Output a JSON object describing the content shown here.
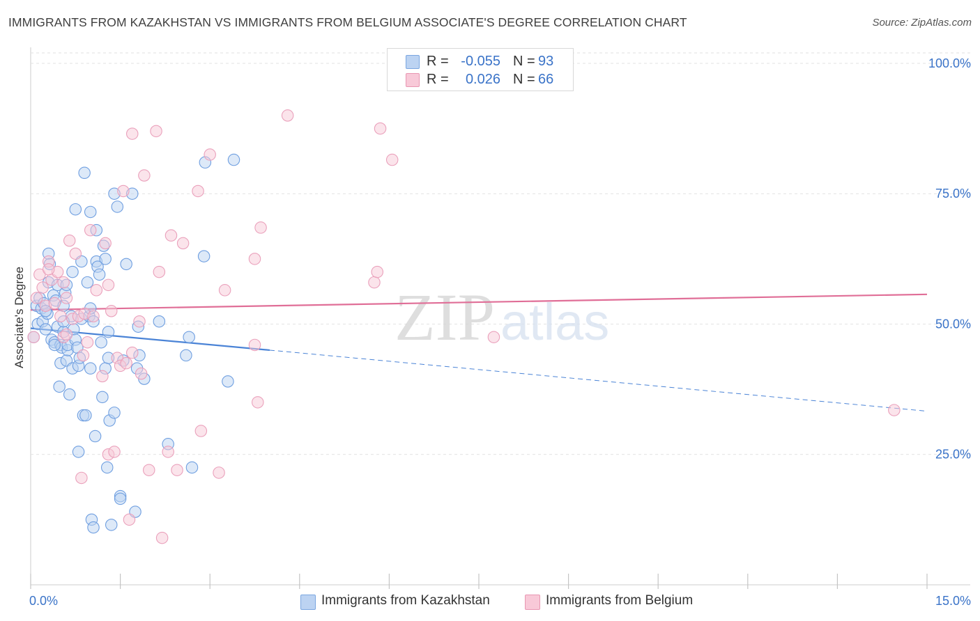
{
  "title": "IMMIGRANTS FROM KAZAKHSTAN VS IMMIGRANTS FROM BELGIUM ASSOCIATE'S DEGREE CORRELATION CHART",
  "source": "Source: ZipAtlas.com",
  "watermark": {
    "part1": "ZIP",
    "part2": "atlas"
  },
  "stats": [
    {
      "r_label": "R =",
      "r_value": "-0.055",
      "n_label": "N =",
      "n_value": "93",
      "color": "#7aa6e0",
      "fill": "#bcd3f2"
    },
    {
      "r_label": "R =",
      "r_value": "0.026",
      "n_label": "N =",
      "n_value": "66",
      "color": "#e896b2",
      "fill": "#f8c9d8"
    }
  ],
  "legend": [
    {
      "label": "Immigrants from Kazakhstan",
      "fill": "#bcd3f2",
      "color": "#7aa6e0"
    },
    {
      "label": "Immigrants from Belgium",
      "fill": "#f8c9d8",
      "color": "#e896b2"
    }
  ],
  "chart_data": {
    "type": "scatter",
    "title": "IMMIGRANTS FROM KAZAKHSTAN VS IMMIGRANTS FROM BELGIUM ASSOCIATE'S DEGREE CORRELATION CHART",
    "xlabel": "",
    "ylabel": "Associate's Degree",
    "xlim": [
      0,
      15
    ],
    "ylim": [
      0,
      102
    ],
    "x_tick_labels": [
      "0.0%",
      "15.0%"
    ],
    "y_ticks": [
      {
        "value": 100,
        "label": "100.0%"
      },
      {
        "value": 75,
        "label": "75.0%"
      },
      {
        "value": 50,
        "label": "50.0%"
      },
      {
        "value": 25,
        "label": "25.0%"
      }
    ],
    "grid": true,
    "series": [
      {
        "name": "Immigrants from Kazakhstan",
        "color": "#4a83d6",
        "fill": "#bcd3f2",
        "trend": {
          "x_start": 0,
          "y_start": 49.2,
          "x_solid_end": 4.0,
          "y_solid_end": 45.0,
          "x_end": 15,
          "y_end": 33.3
        },
        "points": [
          [
            0.05,
            47.5
          ],
          [
            0.1,
            53.5
          ],
          [
            0.12,
            50.0
          ],
          [
            0.15,
            55.0
          ],
          [
            0.18,
            53.0
          ],
          [
            0.2,
            50.5
          ],
          [
            0.22,
            54.0
          ],
          [
            0.25,
            49.0
          ],
          [
            0.28,
            52.0
          ],
          [
            0.3,
            63.5
          ],
          [
            0.3,
            58.0
          ],
          [
            0.32,
            61.5
          ],
          [
            0.35,
            47.0
          ],
          [
            0.38,
            55.5
          ],
          [
            0.4,
            46.5
          ],
          [
            0.42,
            54.5
          ],
          [
            0.45,
            57.5
          ],
          [
            0.45,
            49.5
          ],
          [
            0.48,
            38.0
          ],
          [
            0.5,
            46.0
          ],
          [
            0.5,
            42.5
          ],
          [
            0.52,
            45.5
          ],
          [
            0.55,
            53.5
          ],
          [
            0.55,
            48.5
          ],
          [
            0.58,
            56.0
          ],
          [
            0.6,
            43.0
          ],
          [
            0.62,
            45.0
          ],
          [
            0.62,
            46.0
          ],
          [
            0.65,
            36.5
          ],
          [
            0.68,
            51.5
          ],
          [
            0.7,
            41.5
          ],
          [
            0.72,
            49.0
          ],
          [
            0.75,
            47.0
          ],
          [
            0.75,
            72.0
          ],
          [
            0.78,
            45.5
          ],
          [
            0.8,
            42.0
          ],
          [
            0.8,
            25.5
          ],
          [
            0.82,
            43.5
          ],
          [
            0.85,
            51.0
          ],
          [
            0.88,
            32.5
          ],
          [
            0.9,
            79.0
          ],
          [
            0.92,
            32.5
          ],
          [
            0.95,
            58.0
          ],
          [
            0.98,
            51.5
          ],
          [
            1.0,
            53.0
          ],
          [
            1.0,
            71.5
          ],
          [
            1.02,
            12.5
          ],
          [
            1.05,
            50.5
          ],
          [
            1.05,
            11.0
          ],
          [
            1.08,
            28.5
          ],
          [
            1.1,
            68.0
          ],
          [
            1.1,
            62.0
          ],
          [
            1.12,
            61.0
          ],
          [
            1.15,
            59.5
          ],
          [
            1.18,
            46.5
          ],
          [
            1.2,
            36.0
          ],
          [
            1.22,
            65.0
          ],
          [
            1.25,
            62.5
          ],
          [
            1.25,
            41.5
          ],
          [
            1.28,
            22.5
          ],
          [
            1.3,
            48.5
          ],
          [
            1.3,
            43.5
          ],
          [
            1.32,
            31.5
          ],
          [
            1.35,
            11.5
          ],
          [
            1.4,
            33.0
          ],
          [
            1.4,
            75.0
          ],
          [
            1.45,
            72.5
          ],
          [
            1.5,
            17.0
          ],
          [
            1.5,
            16.5
          ],
          [
            1.55,
            43.0
          ],
          [
            1.6,
            61.5
          ],
          [
            1.7,
            75.0
          ],
          [
            1.75,
            14.0
          ],
          [
            1.78,
            41.5
          ],
          [
            1.8,
            49.5
          ],
          [
            1.82,
            44.0
          ],
          [
            1.9,
            39.5
          ],
          [
            2.15,
            50.5
          ],
          [
            2.3,
            27.0
          ],
          [
            2.6,
            44.0
          ],
          [
            2.65,
            47.5
          ],
          [
            2.7,
            22.5
          ],
          [
            2.9,
            63.0
          ],
          [
            2.92,
            81.0
          ],
          [
            3.3,
            39.0
          ],
          [
            3.4,
            81.5
          ],
          [
            0.4,
            46.0
          ],
          [
            0.6,
            57.5
          ],
          [
            0.85,
            62.0
          ],
          [
            1.0,
            41.5
          ],
          [
            0.25,
            52.5
          ],
          [
            0.55,
            50.5
          ],
          [
            0.7,
            60.0
          ]
        ]
      },
      {
        "name": "Immigrants from Belgium",
        "color": "#e06e97",
        "fill": "#f8c9d8",
        "trend": {
          "x_start": 0,
          "y_start": 52.7,
          "x_solid_end": 15,
          "y_solid_end": 55.7,
          "x_end": 15,
          "y_end": 55.7
        },
        "points": [
          [
            0.05,
            47.5
          ],
          [
            0.1,
            55.0
          ],
          [
            0.15,
            59.5
          ],
          [
            0.2,
            57.0
          ],
          [
            0.25,
            53.5
          ],
          [
            0.3,
            62.0
          ],
          [
            0.35,
            58.5
          ],
          [
            0.4,
            54.0
          ],
          [
            0.45,
            60.0
          ],
          [
            0.5,
            51.5
          ],
          [
            0.55,
            47.5
          ],
          [
            0.55,
            58.0
          ],
          [
            0.6,
            48.0
          ],
          [
            0.65,
            66.0
          ],
          [
            0.7,
            51.0
          ],
          [
            0.75,
            63.5
          ],
          [
            0.8,
            51.5
          ],
          [
            0.85,
            20.5
          ],
          [
            0.88,
            44.0
          ],
          [
            0.9,
            52.0
          ],
          [
            0.95,
            46.5
          ],
          [
            1.0,
            68.0
          ],
          [
            1.05,
            51.5
          ],
          [
            1.1,
            56.5
          ],
          [
            1.2,
            40.0
          ],
          [
            1.25,
            65.5
          ],
          [
            1.3,
            57.5
          ],
          [
            1.3,
            25.0
          ],
          [
            1.35,
            52.5
          ],
          [
            1.4,
            25.5
          ],
          [
            1.45,
            43.5
          ],
          [
            1.5,
            42.0
          ],
          [
            1.55,
            75.5
          ],
          [
            1.6,
            42.5
          ],
          [
            1.65,
            12.5
          ],
          [
            1.7,
            44.5
          ],
          [
            1.7,
            86.5
          ],
          [
            1.82,
            50.5
          ],
          [
            1.85,
            40.5
          ],
          [
            1.9,
            78.5
          ],
          [
            1.98,
            22.0
          ],
          [
            2.1,
            87.0
          ],
          [
            2.15,
            60.0
          ],
          [
            2.2,
            9.0
          ],
          [
            2.3,
            25.5
          ],
          [
            2.35,
            67.0
          ],
          [
            2.45,
            22.0
          ],
          [
            2.55,
            65.5
          ],
          [
            2.8,
            75.5
          ],
          [
            2.85,
            29.5
          ],
          [
            3.0,
            82.5
          ],
          [
            3.15,
            21.5
          ],
          [
            3.25,
            56.5
          ],
          [
            3.75,
            62.5
          ],
          [
            3.75,
            46.0
          ],
          [
            3.8,
            35.0
          ],
          [
            3.85,
            68.5
          ],
          [
            4.3,
            90.0
          ],
          [
            5.75,
            58.0
          ],
          [
            5.8,
            60.0
          ],
          [
            5.85,
            87.5
          ],
          [
            6.05,
            81.5
          ],
          [
            7.75,
            47.5
          ],
          [
            14.45,
            33.5
          ],
          [
            0.3,
            60.5
          ],
          [
            0.6,
            55.0
          ]
        ]
      }
    ]
  }
}
